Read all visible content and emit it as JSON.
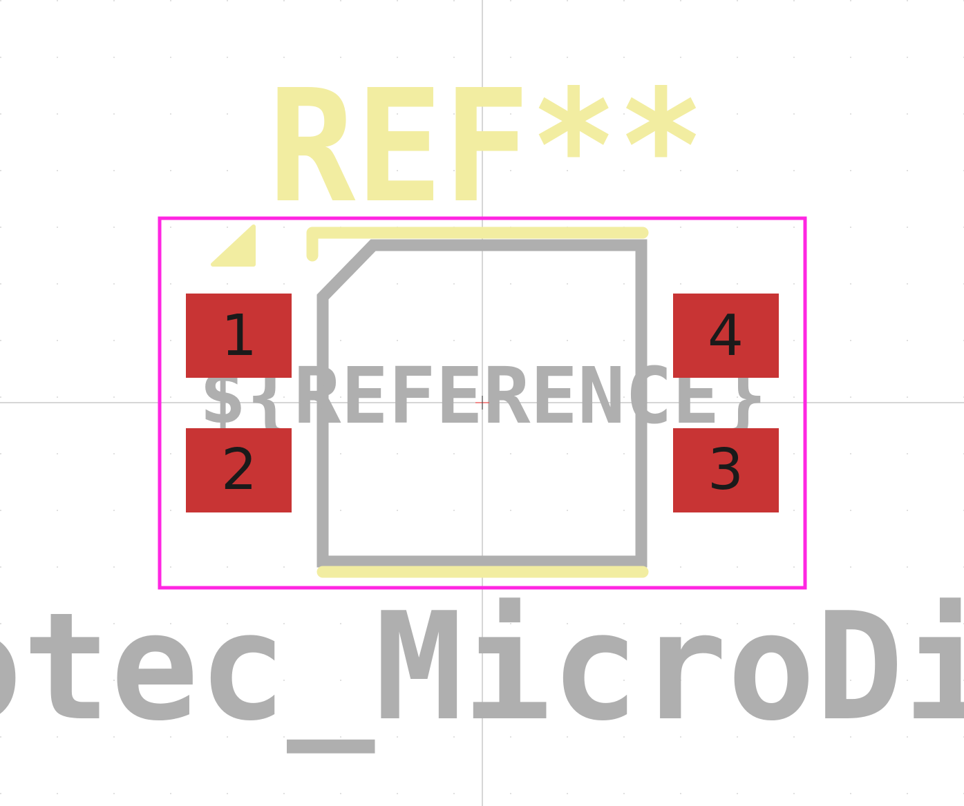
{
  "footprint": {
    "reference_text": "REF**",
    "value_text_prefix": "otec_MicroDi",
    "fab_reference_text": "${REFERENCE}",
    "pads": [
      {
        "number": "1"
      },
      {
        "number": "2"
      },
      {
        "number": "3"
      },
      {
        "number": "4"
      }
    ]
  },
  "colors": {
    "background": "#ffffff",
    "grid_dot": "#d6d6d6",
    "axis_line": "#c8c8c8",
    "courtyard": "#ff26e2",
    "silkscreen": "#f2eda1",
    "fabrication": "#afafaf",
    "pad_copper": "#c83434",
    "pad_number": "#1a1a1a",
    "anchor": "#ff3333"
  }
}
